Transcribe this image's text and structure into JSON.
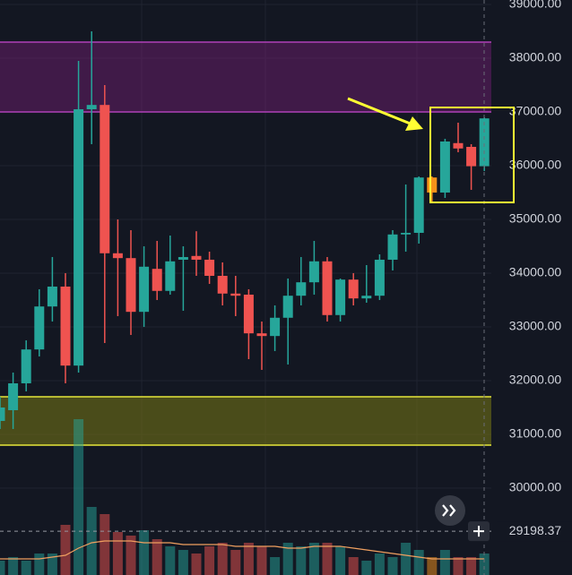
{
  "chart_data": {
    "type": "candlestick",
    "ylim": [
      28383,
      39083
    ],
    "yticks": [
      {
        "value": 30000,
        "label": "30000.00"
      },
      {
        "value": 31000,
        "label": "31000.00"
      },
      {
        "value": 32000,
        "label": "32000.00"
      },
      {
        "value": 33000,
        "label": "33000.00"
      },
      {
        "value": 34000,
        "label": "34000.00"
      },
      {
        "value": 35000,
        "label": "35000.00"
      },
      {
        "value": 36000,
        "label": "36000.00"
      },
      {
        "value": 37000,
        "label": "37000.00"
      },
      {
        "value": 38000,
        "label": "38000.00"
      },
      {
        "value": 39000,
        "label": "39000.00"
      }
    ],
    "grid": true,
    "up_color": "#26a69a",
    "down_color": "#ef5350",
    "highlight_color": "#f7931a",
    "open": [
      31250,
      31450,
      31950,
      32580,
      33380,
      33750,
      32280,
      37050,
      37130,
      34370,
      34280,
      33280,
      34080,
      33670,
      34250,
      34320,
      34250,
      33950,
      33620,
      33600,
      32880,
      32830,
      33170,
      33580,
      33830,
      34220,
      33220,
      33880,
      33530,
      33580,
      34250,
      34720,
      34750,
      35780,
      35500,
      36420,
      36350,
      35990
    ],
    "high": [
      31700,
      32150,
      32750,
      33700,
      34300,
      34000,
      37950,
      38500,
      37500,
      35000,
      34800,
      34500,
      34600,
      34700,
      34500,
      34780,
      34400,
      34200,
      33950,
      33700,
      33100,
      33400,
      33900,
      34300,
      34600,
      34300,
      33900,
      34000,
      34150,
      34350,
      34800,
      35650,
      35800,
      35800,
      36500,
      36800,
      36400,
      36900
    ],
    "low": [
      31100,
      31100,
      31800,
      32450,
      33100,
      31950,
      32150,
      36400,
      32700,
      33200,
      32850,
      33000,
      33500,
      33600,
      33300,
      33950,
      33800,
      33400,
      33200,
      32400,
      32200,
      32550,
      32300,
      33400,
      33600,
      33100,
      33100,
      33400,
      33450,
      33500,
      34050,
      34400,
      34550,
      35300,
      35400,
      36250,
      35550,
      35900
    ],
    "close": [
      31500,
      31950,
      32580,
      33380,
      33750,
      32280,
      37050,
      37130,
      34370,
      34280,
      33280,
      34120,
      33670,
      34220,
      34300,
      34250,
      33950,
      33620,
      33580,
      32880,
      32830,
      33170,
      33580,
      33830,
      34220,
      33220,
      33880,
      33530,
      33580,
      34250,
      34720,
      34750,
      35780,
      35500,
      36450,
      36320,
      35990,
      36880
    ],
    "highlight": [
      33
    ],
    "volume": [
      8,
      10,
      8,
      12,
      12,
      28,
      87,
      38,
      34,
      24,
      22,
      25,
      20,
      16,
      14,
      12,
      16,
      18,
      14,
      18,
      16,
      10,
      18,
      16,
      18,
      18,
      16,
      10,
      8,
      12,
      10,
      18,
      14,
      10,
      14,
      10,
      10,
      12
    ],
    "volume_lim": [
      0,
      100
    ],
    "volume_ma": [
      9,
      9,
      9,
      9,
      10,
      11,
      15,
      18,
      19,
      19,
      19,
      18,
      18,
      18,
      17,
      17,
      17,
      17,
      16,
      16,
      16,
      16,
      15,
      15,
      16,
      16,
      16,
      15,
      14,
      13,
      12,
      11,
      10,
      9,
      9,
      9,
      9,
      9
    ],
    "volume_ma_color": "#f0a060",
    "zones": [
      {
        "low": 37000,
        "high": 38300,
        "fill": "rgba(120,30,120,0.45)",
        "stroke": "#b040b8"
      },
      {
        "low": 30800,
        "high": 31700,
        "fill": "rgba(120,120,20,0.55)",
        "stroke": "#e6e63a"
      }
    ],
    "last_price": 29198.37
  }
}
